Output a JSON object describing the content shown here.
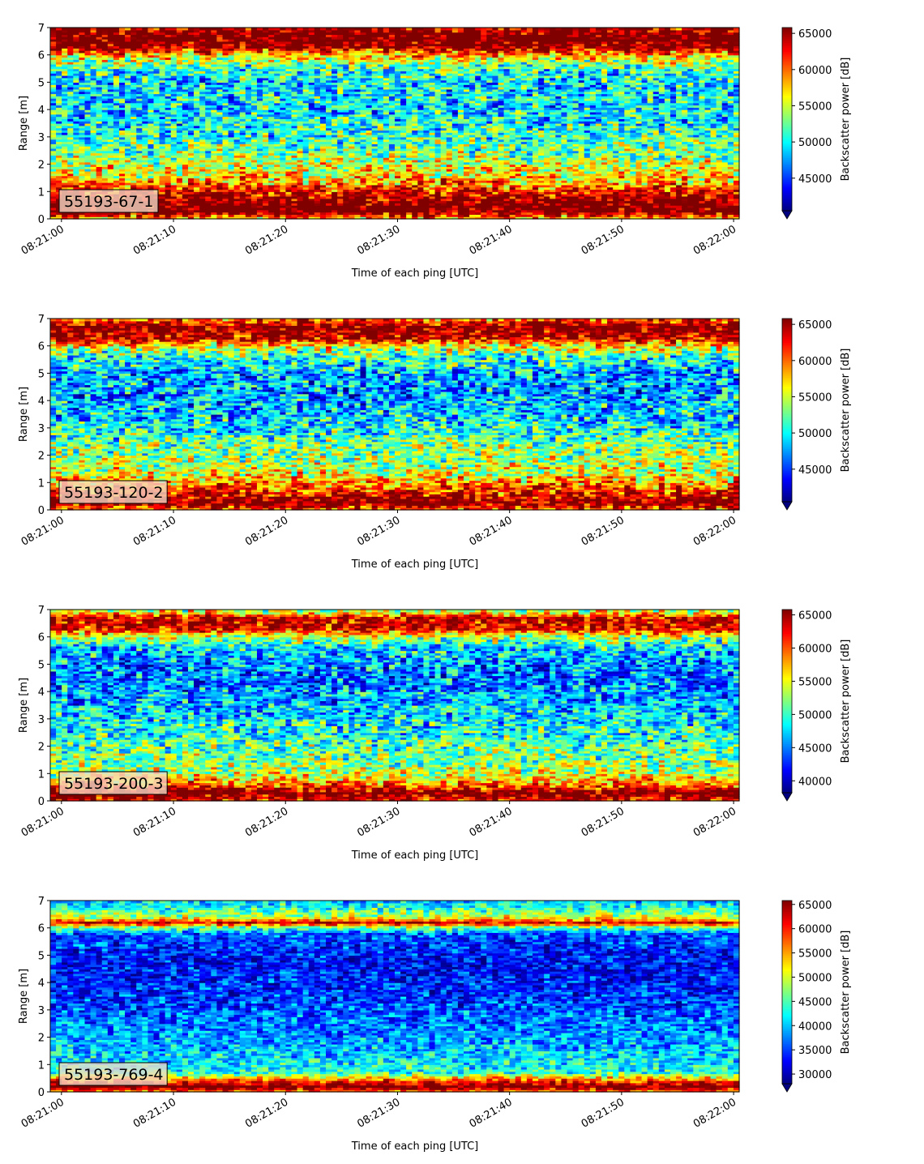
{
  "chart_data": [
    {
      "type": "heatmap",
      "label": "55193-67-1",
      "xlabel": "Time of each ping [UTC]",
      "ylabel": "Range [m]",
      "colorbar_label": "Backscatter power [dB]",
      "colormap": "jet",
      "x_ticks": [
        "08:21:00",
        "08:21:10",
        "08:21:20",
        "08:21:30",
        "08:21:40",
        "08:21:50",
        "08:22:00"
      ],
      "xlim": [
        "08:20:59",
        "08:22:00.5"
      ],
      "y_ticks": [
        0,
        1,
        2,
        3,
        4,
        5,
        6,
        7
      ],
      "ylim": [
        0,
        7
      ],
      "colorbar_ticks": [
        45000,
        50000,
        55000,
        60000,
        65000
      ],
      "clim": [
        40500,
        65800
      ],
      "profile": [
        {
          "range_m": 0.0,
          "power": 57000
        },
        {
          "range_m": 0.3,
          "power": 68000
        },
        {
          "range_m": 0.6,
          "power": 67000
        },
        {
          "range_m": 0.9,
          "power": 64000
        },
        {
          "range_m": 1.2,
          "power": 60000
        },
        {
          "range_m": 1.6,
          "power": 57000
        },
        {
          "range_m": 2.2,
          "power": 54000
        },
        {
          "range_m": 2.8,
          "power": 52000
        },
        {
          "range_m": 3.5,
          "power": 50000
        },
        {
          "range_m": 4.2,
          "power": 49500
        },
        {
          "range_m": 5.0,
          "power": 49500
        },
        {
          "range_m": 5.6,
          "power": 52000
        },
        {
          "range_m": 6.0,
          "power": 58000
        },
        {
          "range_m": 6.3,
          "power": 66000
        },
        {
          "range_m": 6.7,
          "power": 68000
        },
        {
          "range_m": 7.0,
          "power": 64000
        }
      ]
    },
    {
      "type": "heatmap",
      "label": "55193-120-2",
      "xlabel": "Time of each ping [UTC]",
      "ylabel": "Range [m]",
      "colorbar_label": "Backscatter power [dB]",
      "colormap": "jet",
      "x_ticks": [
        "08:21:00",
        "08:21:10",
        "08:21:20",
        "08:21:30",
        "08:21:40",
        "08:21:50",
        "08:22:00"
      ],
      "xlim": [
        "08:20:59",
        "08:22:00.5"
      ],
      "y_ticks": [
        0,
        1,
        2,
        3,
        4,
        5,
        6,
        7
      ],
      "ylim": [
        0,
        7
      ],
      "colorbar_ticks": [
        45000,
        50000,
        55000,
        60000,
        65000
      ],
      "clim": [
        40500,
        65800
      ],
      "profile": [
        {
          "range_m": 0.0,
          "power": 60000
        },
        {
          "range_m": 0.3,
          "power": 67000
        },
        {
          "range_m": 0.6,
          "power": 63000
        },
        {
          "range_m": 0.9,
          "power": 60000
        },
        {
          "range_m": 1.3,
          "power": 56000
        },
        {
          "range_m": 1.8,
          "power": 54000
        },
        {
          "range_m": 2.4,
          "power": 53000
        },
        {
          "range_m": 3.0,
          "power": 50000
        },
        {
          "range_m": 3.6,
          "power": 48500
        },
        {
          "range_m": 4.3,
          "power": 47500
        },
        {
          "range_m": 5.0,
          "power": 48000
        },
        {
          "range_m": 5.6,
          "power": 51000
        },
        {
          "range_m": 6.0,
          "power": 56000
        },
        {
          "range_m": 6.3,
          "power": 64000
        },
        {
          "range_m": 6.7,
          "power": 66000
        },
        {
          "range_m": 7.0,
          "power": 60000
        }
      ]
    },
    {
      "type": "heatmap",
      "label": "55193-200-3",
      "xlabel": "Time of each ping [UTC]",
      "ylabel": "Range [m]",
      "colorbar_label": "Backscatter power [dB]",
      "colormap": "jet",
      "x_ticks": [
        "08:21:00",
        "08:21:10",
        "08:21:20",
        "08:21:30",
        "08:21:40",
        "08:21:50",
        "08:22:00"
      ],
      "xlim": [
        "08:20:59",
        "08:22:00.5"
      ],
      "y_ticks": [
        0,
        1,
        2,
        3,
        4,
        5,
        6,
        7
      ],
      "ylim": [
        0,
        7
      ],
      "colorbar_ticks": [
        40000,
        45000,
        50000,
        55000,
        60000,
        65000
      ],
      "clim": [
        38200,
        65800
      ],
      "profile": [
        {
          "range_m": 0.0,
          "power": 62000
        },
        {
          "range_m": 0.3,
          "power": 67000
        },
        {
          "range_m": 0.6,
          "power": 60000
        },
        {
          "range_m": 1.0,
          "power": 54000
        },
        {
          "range_m": 1.5,
          "power": 52000
        },
        {
          "range_m": 2.0,
          "power": 51000
        },
        {
          "range_m": 2.6,
          "power": 49000
        },
        {
          "range_m": 3.2,
          "power": 47500
        },
        {
          "range_m": 3.8,
          "power": 46000
        },
        {
          "range_m": 4.4,
          "power": 45000
        },
        {
          "range_m": 5.0,
          "power": 45500
        },
        {
          "range_m": 5.6,
          "power": 47500
        },
        {
          "range_m": 6.0,
          "power": 53000
        },
        {
          "range_m": 6.3,
          "power": 63000
        },
        {
          "range_m": 6.7,
          "power": 64000
        },
        {
          "range_m": 7.0,
          "power": 52000
        }
      ]
    },
    {
      "type": "heatmap",
      "label": "55193-769-4",
      "xlabel": "Time of each ping [UTC]",
      "ylabel": "Range [m]",
      "colorbar_label": "Backscatter power [dB]",
      "colormap": "jet",
      "x_ticks": [
        "08:21:00",
        "08:21:10",
        "08:21:20",
        "08:21:30",
        "08:21:40",
        "08:21:50",
        "08:22:00"
      ],
      "xlim": [
        "08:20:59",
        "08:22:00.5"
      ],
      "y_ticks": [
        0,
        1,
        2,
        3,
        4,
        5,
        6,
        7
      ],
      "ylim": [
        0,
        7
      ],
      "colorbar_ticks": [
        30000,
        35000,
        40000,
        45000,
        50000,
        55000,
        60000,
        65000
      ],
      "clim": [
        28000,
        65800
      ],
      "profile": [
        {
          "range_m": 0.0,
          "power": 55000
        },
        {
          "range_m": 0.2,
          "power": 67000
        },
        {
          "range_m": 0.4,
          "power": 60000
        },
        {
          "range_m": 0.7,
          "power": 44000
        },
        {
          "range_m": 1.0,
          "power": 42000
        },
        {
          "range_m": 1.5,
          "power": 40000
        },
        {
          "range_m": 2.0,
          "power": 38500
        },
        {
          "range_m": 2.6,
          "power": 37000
        },
        {
          "range_m": 3.2,
          "power": 35500
        },
        {
          "range_m": 3.8,
          "power": 34000
        },
        {
          "range_m": 4.5,
          "power": 33000
        },
        {
          "range_m": 5.2,
          "power": 33500
        },
        {
          "range_m": 5.8,
          "power": 36000
        },
        {
          "range_m": 6.05,
          "power": 48000
        },
        {
          "range_m": 6.2,
          "power": 63000
        },
        {
          "range_m": 6.4,
          "power": 50000
        },
        {
          "range_m": 6.7,
          "power": 44000
        },
        {
          "range_m": 7.0,
          "power": 40000
        }
      ]
    }
  ]
}
